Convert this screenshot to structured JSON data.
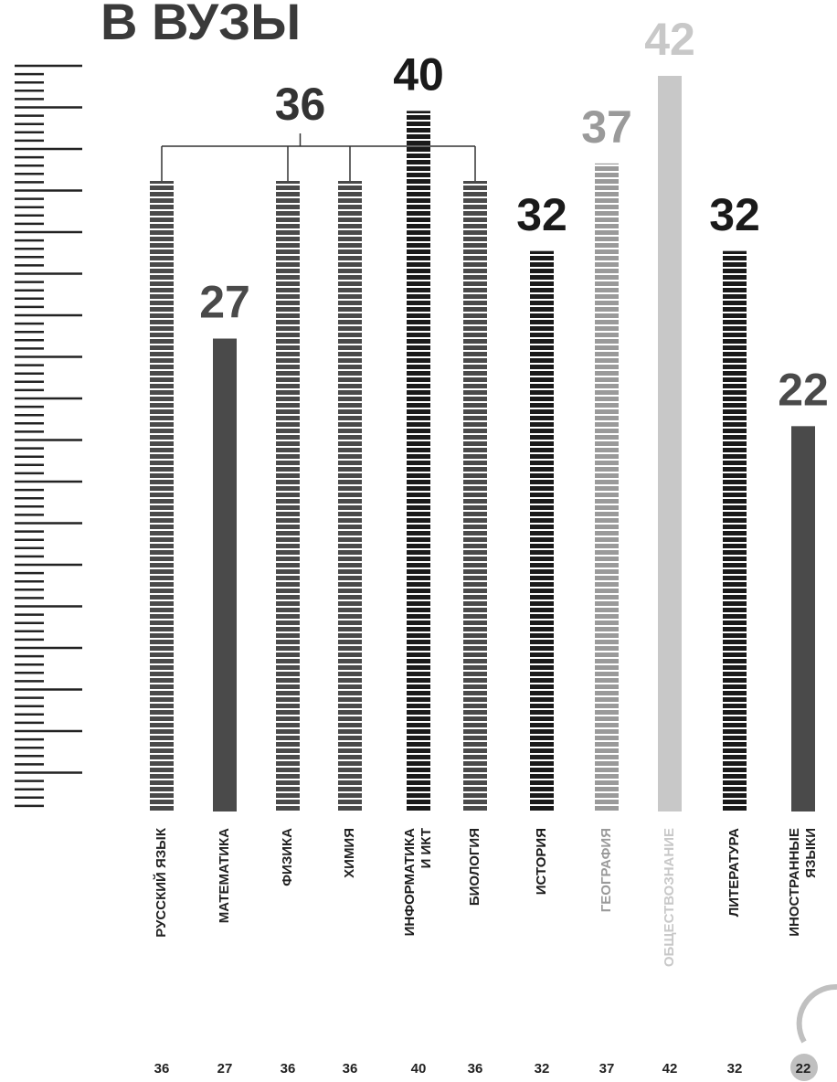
{
  "chart_data": {
    "type": "bar",
    "title": "В ВУЗЫ",
    "categories": [
      "РУССКИЙ ЯЗЫК",
      "МАТЕМАТИКА",
      "ФИЗИКА",
      "ХИМИЯ",
      "ИНФОРМАТИКА\nИ ИКТ",
      "БИОЛОГИЯ",
      "ИСТОРИЯ",
      "ГЕОГРАФИЯ",
      "ОБЩЕСТВОЗНАНИЕ",
      "ЛИТЕРАТУРА",
      "ИНОСТРАННЫЕ\nЯЗЫКИ"
    ],
    "values": [
      36,
      27,
      36,
      36,
      40,
      36,
      32,
      37,
      42,
      32,
      22
    ],
    "colors": [
      "#4a4a4a",
      "#4a4a4a",
      "#4a4a4a",
      "#4a4a4a",
      "#1a1a1a",
      "#4a4a4a",
      "#1a1a1a",
      "#9a9a9a",
      "#c8c8c8",
      "#1a1a1a",
      "#4a4a4a"
    ],
    "striped": [
      true,
      false,
      true,
      true,
      true,
      true,
      true,
      true,
      false,
      true,
      false
    ],
    "label_groups": [
      [
        0,
        2,
        3,
        5
      ],
      [
        1
      ],
      [
        4
      ],
      [
        6
      ],
      [
        7
      ],
      [
        8
      ],
      [
        9
      ],
      [
        10
      ]
    ],
    "ylim": [
      0,
      42
    ]
  }
}
